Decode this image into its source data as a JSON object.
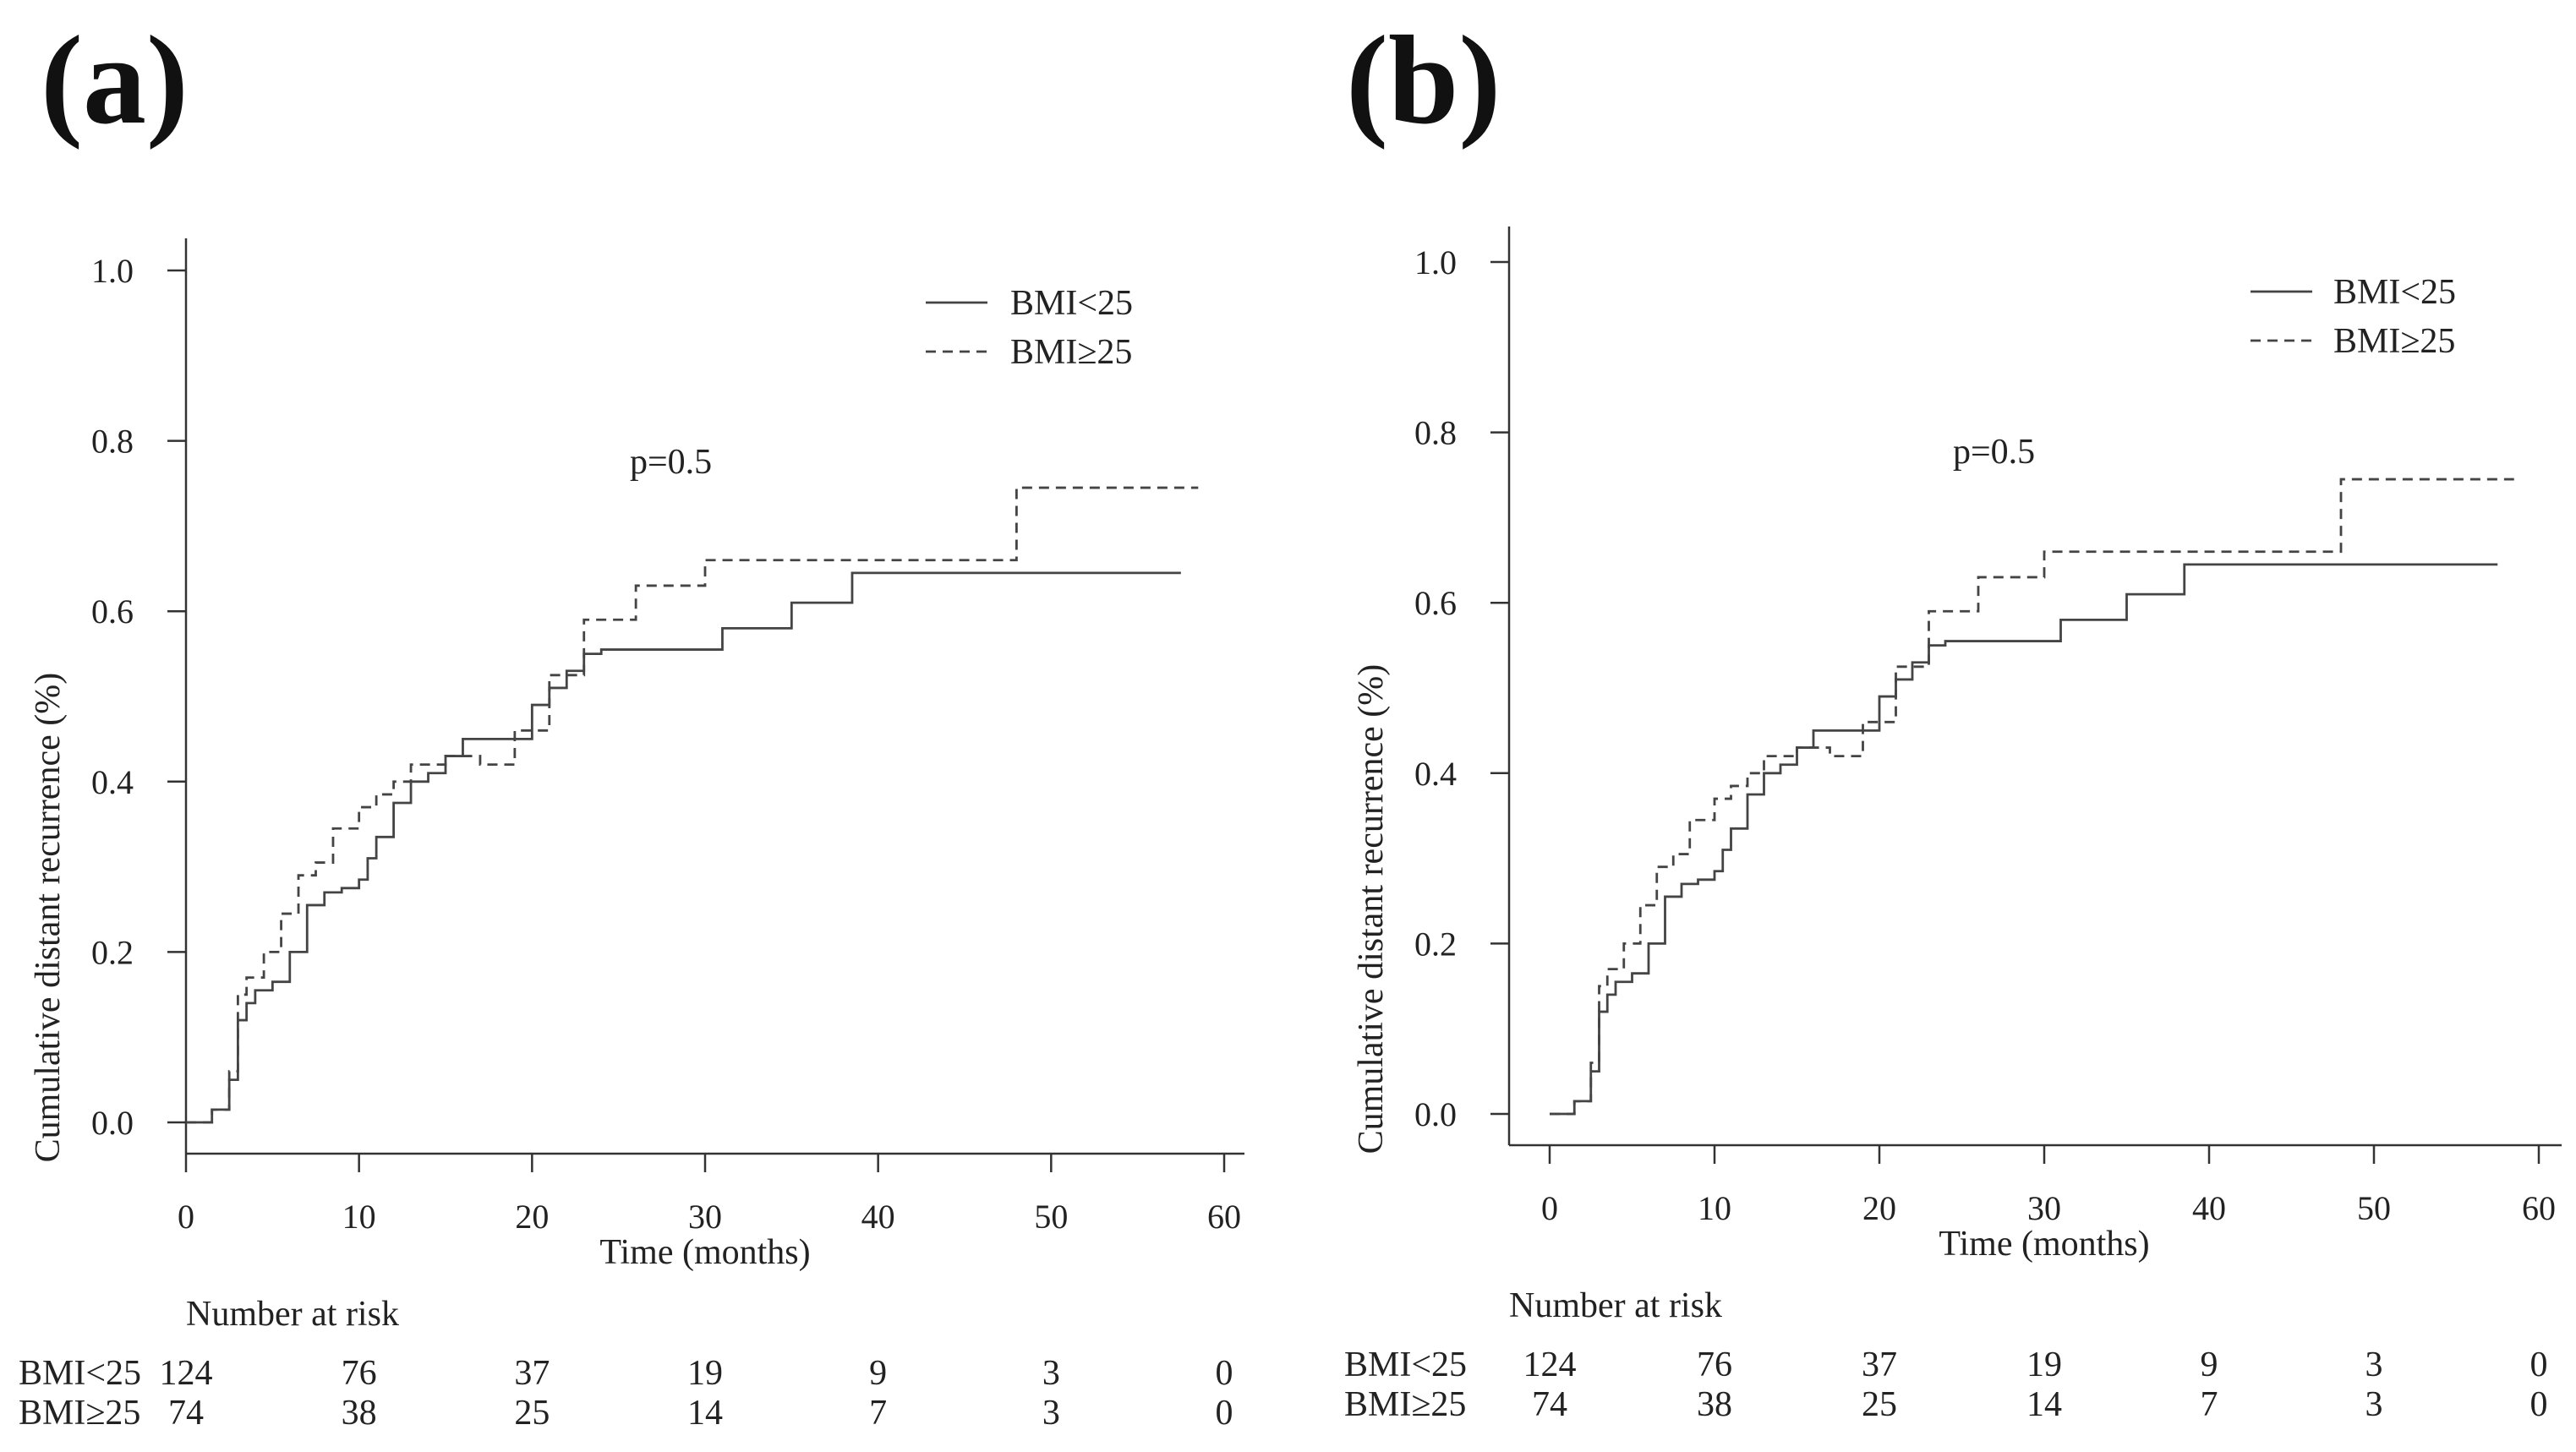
{
  "chart_data": [
    {
      "panel": "(a)",
      "type": "line",
      "subtype": "kaplan-meier-step",
      "xlabel": "Time (months)",
      "ylabel": "Cumulative distant recurrence (%)",
      "xlim": [
        0,
        60
      ],
      "ylim": [
        0,
        1.0
      ],
      "xticks": [
        "0",
        "10",
        "20",
        "30",
        "40",
        "50",
        "60"
      ],
      "yticks": [
        "0.0",
        "0.2",
        "0.4",
        "0.6",
        "0.8",
        "1.0"
      ],
      "annotation": "p=0.5",
      "legend_position": "top-right",
      "series": [
        {
          "name": "BMI<25",
          "style": "solid",
          "x": [
            0,
            1.5,
            2.5,
            3,
            3.5,
            4,
            5,
            6,
            7,
            8,
            9,
            10,
            10.5,
            11,
            12,
            13,
            14,
            15,
            16,
            18,
            20,
            21,
            22,
            23,
            24,
            31,
            35,
            38.5,
            57.5
          ],
          "y": [
            0,
            0.015,
            0.05,
            0.12,
            0.14,
            0.155,
            0.165,
            0.2,
            0.255,
            0.27,
            0.275,
            0.285,
            0.31,
            0.335,
            0.375,
            0.4,
            0.41,
            0.43,
            0.45,
            0.45,
            0.49,
            0.51,
            0.53,
            0.55,
            0.555,
            0.58,
            0.61,
            0.645,
            0.645
          ]
        },
        {
          "name": "BMI≥25",
          "style": "dashed",
          "x": [
            0,
            1.5,
            2.5,
            3,
            3.5,
            4.5,
            5.5,
            6.5,
            7.5,
            8.5,
            10,
            11,
            12,
            13,
            15,
            17,
            19,
            21,
            23,
            24,
            26,
            30,
            48,
            58.5
          ],
          "y": [
            0,
            0.015,
            0.06,
            0.15,
            0.17,
            0.2,
            0.245,
            0.29,
            0.305,
            0.345,
            0.37,
            0.385,
            0.4,
            0.42,
            0.43,
            0.42,
            0.46,
            0.525,
            0.59,
            0.59,
            0.63,
            0.66,
            0.745,
            0.745
          ]
        }
      ],
      "risk_table": {
        "title": "Number at risk",
        "times": [
          0,
          10,
          20,
          30,
          40,
          50,
          60
        ],
        "rows": [
          {
            "label": "BMI<25",
            "values": [
              "124",
              "76",
              "37",
              "19",
              "9",
              "3",
              "0"
            ]
          },
          {
            "label": "BMI≥25",
            "values": [
              "74",
              "38",
              "25",
              "14",
              "7",
              "3",
              "0"
            ]
          }
        ]
      }
    },
    {
      "panel": "(b)",
      "type": "line",
      "subtype": "kaplan-meier-step",
      "xlabel": "Time (months)",
      "ylabel": "Cumulative distant recurrence (%)",
      "xlim": [
        0,
        60
      ],
      "ylim": [
        0,
        1.0
      ],
      "xticks": [
        "0",
        "10",
        "20",
        "30",
        "40",
        "50",
        "60"
      ],
      "yticks": [
        "0.0",
        "0.2",
        "0.4",
        "0.6",
        "0.8",
        "1.0"
      ],
      "annotation": "p=0.5",
      "legend_position": "top-right",
      "series": [
        {
          "name": "BMI<25",
          "style": "solid",
          "x": [
            0,
            1.5,
            2.5,
            3,
            3.5,
            4,
            5,
            6,
            7,
            8,
            9,
            10,
            10.5,
            11,
            12,
            13,
            14,
            15,
            16,
            18,
            20,
            21,
            22,
            23,
            24,
            31,
            35,
            38.5,
            57.5
          ],
          "y": [
            0,
            0.015,
            0.05,
            0.12,
            0.14,
            0.155,
            0.165,
            0.2,
            0.255,
            0.27,
            0.275,
            0.285,
            0.31,
            0.335,
            0.375,
            0.4,
            0.41,
            0.43,
            0.45,
            0.45,
            0.49,
            0.51,
            0.53,
            0.55,
            0.555,
            0.58,
            0.61,
            0.645,
            0.645
          ]
        },
        {
          "name": "BMI≥25",
          "style": "dashed",
          "x": [
            0,
            1.5,
            2.5,
            3,
            3.5,
            4.5,
            5.5,
            6.5,
            7.5,
            8.5,
            10,
            11,
            12,
            13,
            15,
            17,
            19,
            21,
            23,
            24,
            26,
            30,
            48,
            58.5
          ],
          "y": [
            0,
            0.015,
            0.06,
            0.15,
            0.17,
            0.2,
            0.245,
            0.29,
            0.305,
            0.345,
            0.37,
            0.385,
            0.4,
            0.42,
            0.43,
            0.42,
            0.46,
            0.525,
            0.59,
            0.59,
            0.63,
            0.66,
            0.745,
            0.745
          ]
        }
      ],
      "risk_table": {
        "title": "Number at risk",
        "times": [
          0,
          10,
          20,
          30,
          40,
          50,
          60
        ],
        "rows": [
          {
            "label": "BMI<25",
            "values": [
              "124",
              "76",
              "37",
              "19",
              "9",
              "3",
              "0"
            ]
          },
          {
            "label": "BMI≥25",
            "values": [
              "74",
              "38",
              "25",
              "14",
              "7",
              "3",
              "0"
            ]
          }
        ]
      }
    }
  ]
}
